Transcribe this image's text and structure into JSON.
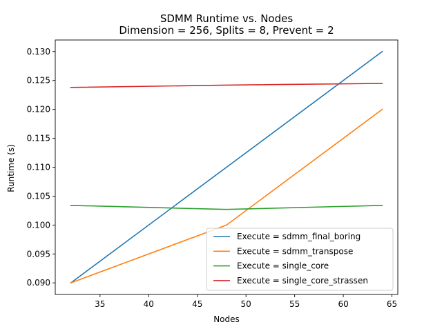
{
  "chart_data": {
    "type": "line",
    "title": "SDMM Runtime vs. Nodes",
    "subtitle": "Dimension = 256, Splits = 8, Prevent = 2",
    "xlabel": "Nodes",
    "ylabel": "Runtime (s)",
    "xlim": [
      30.4,
      65.6
    ],
    "ylim": [
      0.088,
      0.132
    ],
    "xticks": [
      35,
      40,
      45,
      50,
      55,
      60,
      65
    ],
    "yticks": [
      0.09,
      0.095,
      0.1,
      0.105,
      0.11,
      0.115,
      0.12,
      0.125,
      0.13
    ],
    "xtick_labels": [
      "35",
      "40",
      "45",
      "50",
      "55",
      "60",
      "65"
    ],
    "ytick_labels": [
      "0.090",
      "0.095",
      "0.100",
      "0.105",
      "0.110",
      "0.115",
      "0.120",
      "0.125",
      "0.130"
    ],
    "grid": false,
    "legend_position": "lower-right",
    "x": [
      32,
      48,
      64
    ],
    "series": [
      {
        "name": "Execute = sdmm_final_boring",
        "color": "#1f77b4",
        "values": [
          0.09,
          0.11,
          0.13
        ]
      },
      {
        "name": "Execute = sdmm_transpose",
        "color": "#ff7f0e",
        "values": [
          0.09,
          0.1,
          0.12
        ]
      },
      {
        "name": "Execute = single_core",
        "color": "#2ca02c",
        "values": [
          0.1034,
          0.1027,
          0.1034
        ]
      },
      {
        "name": "Execute = single_core_strassen",
        "color": "#d62728",
        "values": [
          0.1238,
          0.1242,
          0.1245
        ]
      }
    ]
  }
}
